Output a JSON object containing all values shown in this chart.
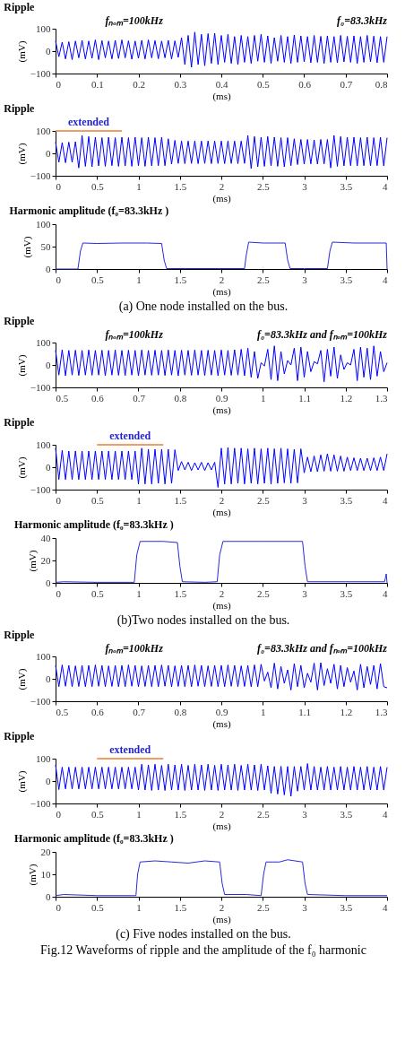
{
  "chart_data": [
    {
      "type": "line",
      "title": "Ripple",
      "xlabel": "(ms)",
      "ylabel": "(mV)",
      "xlim": [
        0,
        0.8
      ],
      "ylim": [
        -100,
        100
      ],
      "xticks": [
        0,
        0.1,
        0.2,
        0.3,
        0.4,
        0.5,
        0.6,
        0.7,
        0.8
      ],
      "yticks": [
        -100,
        0,
        100
      ],
      "annotations": [
        "fₙₒₘ=100kHz",
        "f₀=83.3kHz"
      ],
      "x": [
        0,
        0.008,
        0.016,
        0.024,
        0.032,
        0.04,
        0.048,
        0.056,
        0.064,
        0.072,
        0.08,
        0.088,
        0.096,
        0.104,
        0.112,
        0.12,
        0.128,
        0.136,
        0.144,
        0.152,
        0.16,
        0.168,
        0.176,
        0.184,
        0.192,
        0.2,
        0.208,
        0.216,
        0.224,
        0.232,
        0.24,
        0.248,
        0.256,
        0.264,
        0.272,
        0.28,
        0.288,
        0.296,
        0.304,
        0.312,
        0.32,
        0.328,
        0.336,
        0.344,
        0.352,
        0.36,
        0.368,
        0.376,
        0.384,
        0.392,
        0.4,
        0.408,
        0.416,
        0.424,
        0.432,
        0.44,
        0.448,
        0.456,
        0.464,
        0.472,
        0.48,
        0.488,
        0.496,
        0.504,
        0.512,
        0.52,
        0.528,
        0.536,
        0.544,
        0.552,
        0.56,
        0.568,
        0.576,
        0.584,
        0.592,
        0.6,
        0.608,
        0.616,
        0.624,
        0.632,
        0.64,
        0.648,
        0.656,
        0.664,
        0.672,
        0.68,
        0.688,
        0.696,
        0.704,
        0.712,
        0.72,
        0.728,
        0.736,
        0.744,
        0.752,
        0.76,
        0.768,
        0.776,
        0.784,
        0.792,
        0.8
      ],
      "series": [
        {
          "color": "#0000ff",
          "values": [
            45,
            -25,
            40,
            -35,
            42,
            -38,
            45,
            -30,
            48,
            -35,
            45,
            -32,
            50,
            -38,
            47,
            -30,
            45,
            -35,
            48,
            -33,
            50,
            -30,
            46,
            -36,
            45,
            -32,
            48,
            -35,
            50,
            -30,
            47,
            -34,
            45,
            -30,
            48,
            -35,
            46,
            -28,
            60,
            -60,
            70,
            -72,
            85,
            -60,
            75,
            -65,
            78,
            -55,
            80,
            -60,
            70,
            -50,
            75,
            -55,
            65,
            -60,
            70,
            -50,
            65,
            -55,
            70,
            -45,
            75,
            -50,
            68,
            -55,
            60,
            -45,
            70,
            -50,
            65,
            -55,
            72,
            -50,
            68,
            -48,
            65,
            -52,
            70,
            -50,
            66,
            -55,
            68,
            -50,
            65,
            -52,
            70,
            -48,
            66,
            -50,
            68,
            -55,
            65,
            -50,
            70,
            -48,
            67,
            -52,
            65,
            -50,
            65
          ]
        }
      ]
    },
    {
      "type": "line",
      "title": "Ripple",
      "xlabel": "(ms)",
      "ylabel": "(mV)",
      "xlim": [
        0,
        4
      ],
      "ylim": [
        -100,
        100
      ],
      "xticks": [
        0,
        0.5,
        1,
        1.5,
        2,
        2.5,
        3,
        3.5,
        4
      ],
      "yticks": [
        -100,
        0,
        100
      ],
      "annotations": [
        "extended"
      ],
      "x": [
        0,
        0.04,
        0.08,
        0.12,
        0.16,
        0.2,
        0.24,
        0.28,
        0.32,
        0.36,
        0.4,
        0.44,
        0.48,
        0.52,
        0.56,
        0.6,
        0.64,
        0.68,
        0.72,
        0.76,
        0.8,
        0.84,
        0.88,
        0.92,
        0.96,
        1,
        1.04,
        1.08,
        1.12,
        1.16,
        1.2,
        1.24,
        1.28,
        1.32,
        1.36,
        1.4,
        1.44,
        1.48,
        1.52,
        1.56,
        1.6,
        1.64,
        1.68,
        1.72,
        1.76,
        1.8,
        1.84,
        1.88,
        1.92,
        1.96,
        2,
        2.04,
        2.08,
        2.12,
        2.16,
        2.2,
        2.24,
        2.28,
        2.32,
        2.36,
        2.4,
        2.44,
        2.48,
        2.52,
        2.56,
        2.6,
        2.64,
        2.68,
        2.72,
        2.76,
        2.8,
        2.84,
        2.88,
        2.92,
        2.96,
        3,
        3.04,
        3.08,
        3.12,
        3.16,
        3.2,
        3.24,
        3.28,
        3.32,
        3.36,
        3.4,
        3.44,
        3.48,
        3.52,
        3.56,
        3.6,
        3.64,
        3.68,
        3.72,
        3.76,
        3.8,
        3.84,
        3.88,
        3.92,
        3.96,
        4
      ],
      "series": [
        {
          "color": "#0000ff",
          "values": [
            50,
            -40,
            48,
            -42,
            50,
            -40,
            52,
            -65,
            80,
            -58,
            75,
            -60,
            72,
            -56,
            70,
            -58,
            72,
            -55,
            70,
            -58,
            72,
            -56,
            70,
            -58,
            72,
            -55,
            70,
            -58,
            72,
            -56,
            70,
            -55,
            72,
            -55,
            65,
            -48,
            58,
            -45,
            55,
            -46,
            55,
            -45,
            55,
            -46,
            55,
            -45,
            55,
            -46,
            55,
            -45,
            55,
            -46,
            55,
            -45,
            55,
            -46,
            55,
            -45,
            80,
            -68,
            75,
            -60,
            72,
            -58,
            75,
            -56,
            72,
            -58,
            70,
            -60,
            70,
            -55,
            65,
            -50,
            62,
            -48,
            62,
            -47,
            60,
            -48,
            62,
            -47,
            62,
            -65,
            80,
            -58,
            75,
            -56,
            72,
            -55,
            72,
            -56,
            70,
            -55,
            72,
            -56,
            70,
            -55,
            72,
            -56,
            70
          ]
        }
      ]
    },
    {
      "type": "line",
      "title": "Harmonic amplitude (f₀=83.3kHz )",
      "xlabel": "(ms)",
      "ylabel": "(mV)",
      "xlim": [
        0,
        4
      ],
      "ylim": [
        0,
        100
      ],
      "xticks": [
        0,
        0.5,
        1,
        1.5,
        2,
        2.5,
        3,
        3.5,
        4
      ],
      "yticks": [
        0,
        50,
        100
      ],
      "annotations": [
        "(a) One node installed on the bus."
      ],
      "x": [
        0,
        0.27,
        0.3,
        0.33,
        0.5,
        0.8,
        1.1,
        1.28,
        1.31,
        1.34,
        1.6,
        2,
        2.28,
        2.3,
        2.33,
        2.5,
        2.77,
        2.8,
        2.83,
        3,
        3.28,
        3.31,
        3.34,
        3.6,
        3.99,
        4
      ],
      "series": [
        {
          "color": "#2a2ad8",
          "values": [
            0,
            0,
            40,
            58,
            57,
            58,
            58,
            57,
            20,
            1,
            1,
            1,
            1,
            30,
            60,
            58,
            58,
            20,
            1,
            1,
            1,
            40,
            60,
            58,
            58,
            0
          ]
        }
      ]
    },
    {
      "type": "line",
      "title": "Ripple",
      "xlabel": "(ms)",
      "ylabel": "(mV)",
      "xlim": [
        0.5,
        1.3
      ],
      "ylim": [
        -100,
        100
      ],
      "xticks": [
        0.5,
        0.6,
        0.7,
        0.8,
        0.9,
        1,
        1.1,
        1.2,
        1.3
      ],
      "yticks": [
        -100,
        0,
        100
      ],
      "annotations": [
        "fₙₒₘ=100kHz",
        "f₀=83.3kHz and fₙₒₘ=100kHz"
      ],
      "x": [
        0.5,
        0.508,
        0.516,
        0.524,
        0.532,
        0.54,
        0.548,
        0.556,
        0.564,
        0.572,
        0.58,
        0.588,
        0.596,
        0.604,
        0.612,
        0.62,
        0.628,
        0.636,
        0.644,
        0.652,
        0.66,
        0.668,
        0.676,
        0.684,
        0.692,
        0.7,
        0.708,
        0.716,
        0.724,
        0.732,
        0.74,
        0.748,
        0.756,
        0.764,
        0.772,
        0.78,
        0.788,
        0.796,
        0.804,
        0.812,
        0.82,
        0.828,
        0.836,
        0.844,
        0.852,
        0.86,
        0.868,
        0.876,
        0.884,
        0.892,
        0.9,
        0.908,
        0.916,
        0.924,
        0.932,
        0.94,
        0.948,
        0.956,
        0.964,
        0.972,
        0.98,
        0.988,
        0.996,
        1.004,
        1.012,
        1.02,
        1.028,
        1.036,
        1.044,
        1.052,
        1.06,
        1.068,
        1.076,
        1.084,
        1.092,
        1.1,
        1.108,
        1.116,
        1.124,
        1.132,
        1.14,
        1.148,
        1.156,
        1.164,
        1.172,
        1.18,
        1.188,
        1.196,
        1.204,
        1.212,
        1.22,
        1.228,
        1.236,
        1.244,
        1.252,
        1.26,
        1.268,
        1.276,
        1.284,
        1.292,
        1.3
      ],
      "series": [
        {
          "color": "#0000ff",
          "values": [
            65,
            -45,
            68,
            -48,
            65,
            -45,
            66,
            -47,
            65,
            -45,
            67,
            -46,
            65,
            -45,
            66,
            -48,
            65,
            -45,
            67,
            -46,
            65,
            -47,
            66,
            -45,
            65,
            -48,
            67,
            -45,
            65,
            -46,
            66,
            -45,
            65,
            -47,
            67,
            -45,
            65,
            -48,
            66,
            -45,
            65,
            -46,
            67,
            -45,
            65,
            -47,
            66,
            -45,
            65,
            -48,
            67,
            -45,
            65,
            -46,
            68,
            -45,
            70,
            -48,
            75,
            -55,
            60,
            -60,
            10,
            -5,
            70,
            -65,
            85,
            -70,
            60,
            -40,
            20,
            0,
            75,
            -70,
            80,
            -55,
            60,
            -30,
            15,
            5,
            65,
            -75,
            70,
            -50,
            80,
            -60,
            45,
            -20,
            10,
            0,
            70,
            -70,
            80,
            -55,
            75,
            -65,
            85,
            -50,
            60,
            -30,
            10
          ]
        }
      ]
    },
    {
      "type": "line",
      "title": "Ripple",
      "xlabel": "(ms)",
      "ylabel": "(mV)",
      "xlim": [
        0,
        4
      ],
      "ylim": [
        -100,
        100
      ],
      "xticks": [
        0,
        0.5,
        1,
        1.5,
        2,
        2.5,
        3,
        3.5,
        4
      ],
      "yticks": [
        -100,
        0,
        100
      ],
      "annotations": [
        "extended"
      ],
      "x": [
        0,
        0.04,
        0.08,
        0.12,
        0.16,
        0.2,
        0.24,
        0.28,
        0.32,
        0.36,
        0.4,
        0.44,
        0.48,
        0.52,
        0.56,
        0.6,
        0.64,
        0.68,
        0.72,
        0.76,
        0.8,
        0.84,
        0.88,
        0.92,
        0.96,
        1,
        1.04,
        1.08,
        1.12,
        1.16,
        1.2,
        1.24,
        1.28,
        1.32,
        1.36,
        1.4,
        1.44,
        1.48,
        1.52,
        1.56,
        1.6,
        1.64,
        1.68,
        1.72,
        1.76,
        1.8,
        1.84,
        1.88,
        1.92,
        1.96,
        2,
        2.04,
        2.08,
        2.12,
        2.16,
        2.2,
        2.24,
        2.28,
        2.32,
        2.36,
        2.4,
        2.44,
        2.48,
        2.52,
        2.56,
        2.6,
        2.64,
        2.68,
        2.72,
        2.76,
        2.8,
        2.84,
        2.88,
        2.92,
        2.96,
        3,
        3.04,
        3.08,
        3.12,
        3.16,
        3.2,
        3.24,
        3.28,
        3.32,
        3.36,
        3.4,
        3.44,
        3.48,
        3.52,
        3.56,
        3.6,
        3.64,
        3.68,
        3.72,
        3.76,
        3.8,
        3.84,
        3.88,
        3.92,
        3.96,
        4
      ],
      "series": [
        {
          "color": "#0000ff",
          "values": [
            85,
            -55,
            75,
            -55,
            72,
            -55,
            72,
            -55,
            72,
            -55,
            72,
            -55,
            72,
            -55,
            72,
            -55,
            72,
            -55,
            72,
            -55,
            72,
            -55,
            72,
            -55,
            72,
            -75,
            85,
            -75,
            80,
            -75,
            80,
            -72,
            80,
            -75,
            80,
            -72,
            78,
            -15,
            25,
            -12,
            22,
            -15,
            20,
            -12,
            22,
            -15,
            20,
            -12,
            22,
            -90,
            85,
            -75,
            88,
            -75,
            85,
            -72,
            85,
            -75,
            82,
            -72,
            85,
            -75,
            82,
            -72,
            85,
            -75,
            82,
            -72,
            85,
            -70,
            82,
            -72,
            80,
            -70,
            82,
            -25,
            45,
            -20,
            50,
            -20,
            55,
            -18,
            60,
            -18,
            55,
            -18,
            50,
            -18,
            45,
            -15,
            42,
            -15,
            40,
            -15,
            40,
            -15,
            42,
            -15,
            45,
            -15,
            60
          ]
        }
      ]
    },
    {
      "type": "line",
      "title": "Harmonic amplitude (f₀=83.3kHz )",
      "xlabel": "(ms)",
      "ylabel": "(mV)",
      "xlim": [
        0,
        4
      ],
      "ylim": [
        0,
        40
      ],
      "xticks": [
        0,
        0.5,
        1,
        1.5,
        2,
        2.5,
        3,
        3.5,
        4
      ],
      "yticks": [
        0,
        20,
        40
      ],
      "annotations": [
        "(b)Two nodes installed on the bus."
      ],
      "x": [
        0,
        0.1,
        0.5,
        0.95,
        0.98,
        1.02,
        1.3,
        1.47,
        1.5,
        1.53,
        1.8,
        1.95,
        1.98,
        2.02,
        2.5,
        2.98,
        3.01,
        3.04,
        3.5,
        3.97,
        3.99,
        4
      ],
      "series": [
        {
          "color": "#2a2ad8",
          "values": [
            0.5,
            1,
            0.5,
            0.5,
            25,
            37,
            37,
            36,
            15,
            1,
            0.5,
            1,
            25,
            37,
            37,
            37,
            15,
            1,
            1,
            1,
            8,
            0
          ]
        }
      ]
    },
    {
      "type": "line",
      "title": "Ripple",
      "xlabel": "(ms)",
      "ylabel": "(mV)",
      "xlim": [
        0.5,
        1.3
      ],
      "ylim": [
        -100,
        100
      ],
      "xticks": [
        0.5,
        0.6,
        0.7,
        0.8,
        0.9,
        1,
        1.1,
        1.2,
        1.3
      ],
      "yticks": [
        -100,
        0,
        100
      ],
      "annotations": [
        "fₙₒₘ=100kHz",
        "f₀=83.3kHz and fₙₒₘ=100kHz"
      ],
      "x": [
        0.5,
        0.508,
        0.516,
        0.524,
        0.532,
        0.54,
        0.548,
        0.556,
        0.564,
        0.572,
        0.58,
        0.588,
        0.596,
        0.604,
        0.612,
        0.62,
        0.628,
        0.636,
        0.644,
        0.652,
        0.66,
        0.668,
        0.676,
        0.684,
        0.692,
        0.7,
        0.708,
        0.716,
        0.724,
        0.732,
        0.74,
        0.748,
        0.756,
        0.764,
        0.772,
        0.78,
        0.788,
        0.796,
        0.804,
        0.812,
        0.82,
        0.828,
        0.836,
        0.844,
        0.852,
        0.86,
        0.868,
        0.876,
        0.884,
        0.892,
        0.9,
        0.908,
        0.916,
        0.924,
        0.932,
        0.94,
        0.948,
        0.956,
        0.964,
        0.972,
        0.98,
        0.988,
        0.996,
        1.004,
        1.012,
        1.02,
        1.028,
        1.036,
        1.044,
        1.052,
        1.06,
        1.068,
        1.076,
        1.084,
        1.092,
        1.1,
        1.108,
        1.116,
        1.124,
        1.132,
        1.14,
        1.148,
        1.156,
        1.164,
        1.172,
        1.18,
        1.188,
        1.196,
        1.204,
        1.212,
        1.22,
        1.228,
        1.236,
        1.244,
        1.252,
        1.26,
        1.268,
        1.276,
        1.284,
        1.292,
        1.3
      ],
      "series": [
        {
          "color": "#0000ff",
          "values": [
            60,
            -35,
            62,
            -33,
            60,
            -35,
            58,
            -34,
            60,
            -35,
            60,
            -35,
            62,
            -33,
            60,
            -35,
            58,
            -34,
            60,
            -35,
            60,
            -35,
            62,
            -33,
            60,
            -35,
            58,
            -34,
            60,
            -35,
            60,
            -35,
            62,
            -33,
            60,
            -35,
            58,
            -34,
            60,
            -35,
            60,
            -35,
            62,
            -33,
            60,
            -35,
            58,
            -34,
            60,
            -35,
            60,
            -35,
            62,
            -33,
            60,
            -35,
            58,
            -34,
            60,
            -35,
            62,
            -35,
            65,
            -10,
            30,
            -40,
            70,
            -45,
            55,
            -20,
            40,
            -50,
            68,
            -35,
            60,
            -40,
            25,
            -15,
            70,
            -50,
            72,
            -30,
            45,
            -20,
            65,
            -45,
            60,
            -35,
            50,
            -15,
            35,
            -50,
            65,
            -40,
            55,
            -25,
            60,
            -45,
            68,
            -35,
            -40
          ]
        }
      ]
    },
    {
      "type": "line",
      "title": "Ripple",
      "xlabel": "(ms)",
      "ylabel": "(mV)",
      "xlim": [
        0,
        4
      ],
      "ylim": [
        -100,
        100
      ],
      "xticks": [
        0,
        0.5,
        1,
        1.5,
        2,
        2.5,
        3,
        3.5,
        4
      ],
      "yticks": [
        -100,
        0,
        100
      ],
      "annotations": [
        "extended"
      ],
      "x": [
        0,
        0.04,
        0.08,
        0.12,
        0.16,
        0.2,
        0.24,
        0.28,
        0.32,
        0.36,
        0.4,
        0.44,
        0.48,
        0.52,
        0.56,
        0.6,
        0.64,
        0.68,
        0.72,
        0.76,
        0.8,
        0.84,
        0.88,
        0.92,
        0.96,
        1,
        1.04,
        1.08,
        1.12,
        1.16,
        1.2,
        1.24,
        1.28,
        1.32,
        1.36,
        1.4,
        1.44,
        1.48,
        1.52,
        1.56,
        1.6,
        1.64,
        1.68,
        1.72,
        1.76,
        1.8,
        1.84,
        1.88,
        1.92,
        1.96,
        2,
        2.04,
        2.08,
        2.12,
        2.16,
        2.2,
        2.24,
        2.28,
        2.32,
        2.36,
        2.4,
        2.44,
        2.48,
        2.52,
        2.56,
        2.6,
        2.64,
        2.68,
        2.72,
        2.76,
        2.8,
        2.84,
        2.88,
        2.92,
        2.96,
        3,
        3.04,
        3.08,
        3.12,
        3.16,
        3.2,
        3.24,
        3.28,
        3.32,
        3.36,
        3.4,
        3.44,
        3.48,
        3.52,
        3.56,
        3.6,
        3.64,
        3.68,
        3.72,
        3.76,
        3.8,
        3.84,
        3.88,
        3.92,
        3.96,
        4
      ],
      "series": [
        {
          "color": "#0000ff",
          "values": [
            72,
            -38,
            62,
            -35,
            62,
            -35,
            62,
            -35,
            62,
            -35,
            62,
            -35,
            62,
            -35,
            62,
            -35,
            62,
            -35,
            62,
            -35,
            62,
            -35,
            62,
            -35,
            62,
            -40,
            75,
            -40,
            72,
            -42,
            75,
            -40,
            70,
            -42,
            75,
            -40,
            72,
            -40,
            75,
            -42,
            70,
            -40,
            75,
            -40,
            72,
            -42,
            75,
            -40,
            70,
            -42,
            75,
            -40,
            72,
            -40,
            75,
            -42,
            70,
            -40,
            75,
            -40,
            72,
            -42,
            75,
            -40,
            68,
            -55,
            65,
            -58,
            66,
            -62,
            65,
            -68,
            65,
            -45,
            65,
            -40,
            78,
            -40,
            65,
            -40,
            62,
            -40,
            65,
            -40,
            62,
            -40,
            65,
            -40,
            62,
            -40,
            65,
            -40,
            62,
            -40,
            65,
            -40,
            62,
            -40,
            65,
            -40,
            62
          ]
        }
      ]
    },
    {
      "type": "line",
      "title": "Harmonic amplitude (f₀=83.3kHz )",
      "xlabel": "(ms)",
      "ylabel": "(mV)",
      "xlim": [
        0,
        4
      ],
      "ylim": [
        0,
        20
      ],
      "xticks": [
        0,
        0.5,
        1,
        1.5,
        2,
        2.5,
        3,
        3.5,
        4
      ],
      "yticks": [
        0,
        10,
        20
      ],
      "annotations": [
        "(c) Five nodes installed on the bus.",
        "Fig.12 Waveforms of ripple and the amplitude of the f₀ harmonic"
      ],
      "x": [
        0,
        0.1,
        0.5,
        0.97,
        0.99,
        1.02,
        1.2,
        1.4,
        1.6,
        1.8,
        1.98,
        2.01,
        2.04,
        2.3,
        2.48,
        2.51,
        2.54,
        2.7,
        2.8,
        2.98,
        3.01,
        3.04,
        3.5,
        4
      ],
      "series": [
        {
          "color": "#2a2ad8",
          "values": [
            0.5,
            1,
            0.5,
            0.5,
            10,
            15.5,
            16,
            15.5,
            15,
            16,
            15.5,
            6,
            1,
            1,
            0.5,
            10,
            15.5,
            15.5,
            16.5,
            15.5,
            6,
            1,
            0.5,
            0.5
          ]
        }
      ]
    }
  ]
}
